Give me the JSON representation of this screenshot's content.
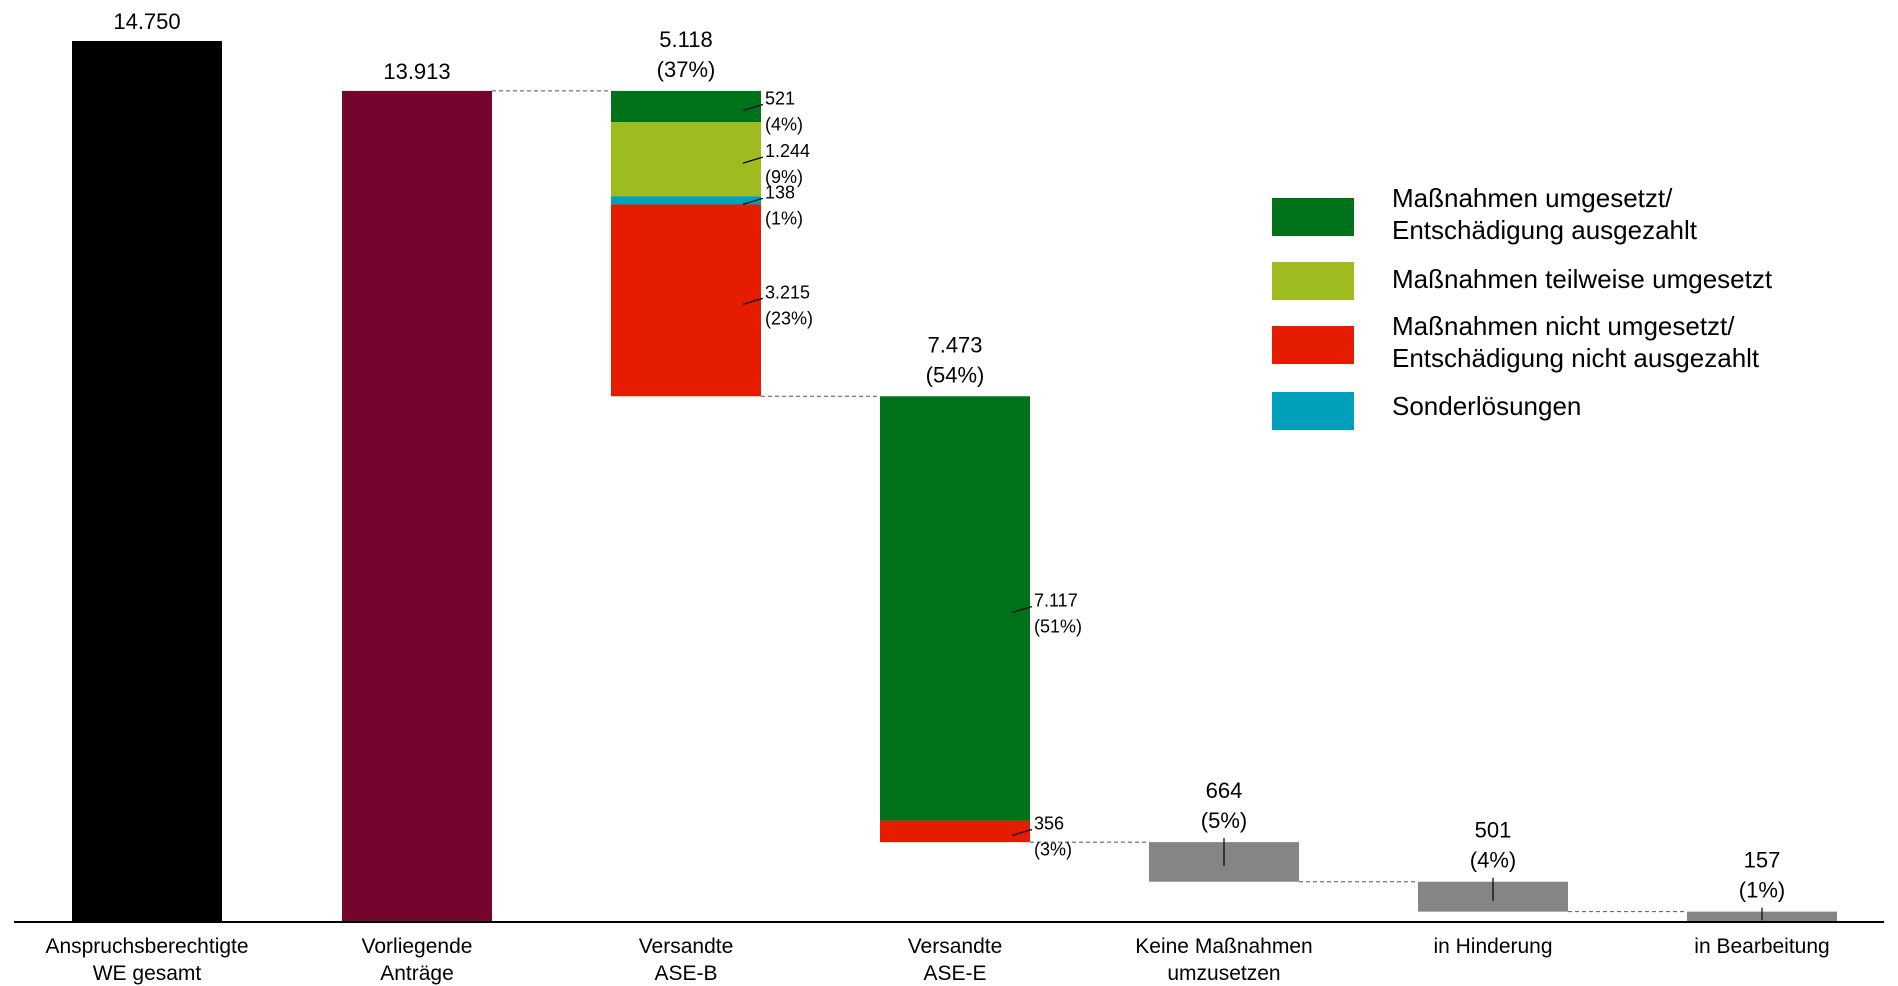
{
  "chart_data": {
    "type": "bar",
    "subtype": "waterfall",
    "categories": [
      "Anspruchsberechtigte\nWE gesamt",
      "Vorliegende\nAnträge",
      "Versandte\nASE-B",
      "Versandte\nASE-E",
      "Keine Maßnahmen\numzusetzen",
      "in Hinderung",
      "in Bearbeitung"
    ],
    "bars": [
      {
        "category_index": 0,
        "base": 0,
        "total": 14750,
        "total_label": "14.750",
        "share_label": "",
        "segments": [
          {
            "series": "total",
            "value": 14750,
            "label": "",
            "share": ""
          }
        ]
      },
      {
        "category_index": 1,
        "base": 0,
        "total": 13913,
        "total_label": "13.913",
        "share_label": "",
        "segments": [
          {
            "series": "applications",
            "value": 13913,
            "label": "",
            "share": ""
          }
        ]
      },
      {
        "category_index": 2,
        "base": 8795,
        "total": 5118,
        "total_label": "5.118",
        "share_label": "(37%)",
        "segments": [
          {
            "series": "umgesetzt",
            "value": 521,
            "label": "521",
            "share": "(4%)"
          },
          {
            "series": "teilweise",
            "value": 1244,
            "label": "1.244",
            "share": "(9%)"
          },
          {
            "series": "sonder",
            "value": 138,
            "label": "138",
            "share": "(1%)"
          },
          {
            "series": "nicht",
            "value": 3215,
            "label": "3.215",
            "share": "(23%)"
          }
        ]
      },
      {
        "category_index": 3,
        "base": 1322,
        "total": 7473,
        "total_label": "7.473",
        "share_label": "(54%)",
        "segments": [
          {
            "series": "umgesetzt",
            "value": 7117,
            "label": "7.117",
            "share": "(51%)"
          },
          {
            "series": "nicht",
            "value": 356,
            "label": "356",
            "share": "(3%)"
          }
        ]
      },
      {
        "category_index": 4,
        "base": 658,
        "total": 664,
        "total_label": "664",
        "share_label": "(5%)",
        "segments": [
          {
            "series": "neutral",
            "value": 664,
            "label": "",
            "share": ""
          }
        ]
      },
      {
        "category_index": 5,
        "base": 157,
        "total": 501,
        "total_label": "501",
        "share_label": "(4%)",
        "segments": [
          {
            "series": "neutral",
            "value": 501,
            "label": "",
            "share": ""
          }
        ]
      },
      {
        "category_index": 6,
        "base": 0,
        "total": 157,
        "total_label": "157",
        "share_label": "(1%)",
        "segments": [
          {
            "series": "neutral",
            "value": 157,
            "label": "",
            "share": ""
          }
        ]
      }
    ],
    "legend": {
      "placement": "right",
      "entries": [
        {
          "series": "umgesetzt",
          "label": "Maßnahmen umgesetzt/\nEntschädigung ausgezahlt"
        },
        {
          "series": "teilweise",
          "label": "Maßnahmen teilweise umgesetzt"
        },
        {
          "series": "nicht",
          "label": "Maßnahmen nicht umgesetzt/\nEntschädigung nicht ausgezahlt"
        },
        {
          "series": "sonder",
          "label": "Sonderlösungen"
        }
      ]
    },
    "colors": {
      "total": "#000000",
      "applications": "#75052f",
      "umgesetzt": "#00721a",
      "teilweise": "#9ebb1f",
      "nicht": "#e61c00",
      "sonder": "#00a0bd",
      "neutral": "#858585",
      "connector": "#555555",
      "axis": "#000000"
    },
    "ylim": [
      0,
      14750
    ],
    "grid": false,
    "title": "",
    "xlabel": "",
    "ylabel": ""
  }
}
